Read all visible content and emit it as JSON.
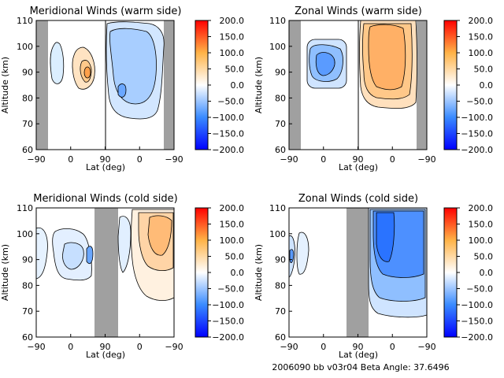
{
  "footer": "2006090 bb v03r04   Beta Angle: 37.6496",
  "colorbar": {
    "ticks": [
      "200.0",
      "150.0",
      "100.0",
      "50.0",
      "0.0",
      "−50.0",
      "−100.0",
      "−150.0",
      "−200.0"
    ],
    "range": [
      -200,
      200
    ],
    "colors": [
      "#0000ff",
      "#3a8bff",
      "#ffffff",
      "#ffb347",
      "#ff0000"
    ]
  },
  "chart_data": [
    {
      "type": "heatmap",
      "title": "Meridional Winds (warm side)",
      "xlabel": "Lat (deg)",
      "ylabel": "Altitude (km)",
      "x_ticks": [
        "−90",
        "0",
        "90",
        "0",
        "−90"
      ],
      "y_ticks": [
        60,
        70,
        80,
        90,
        100,
        110
      ],
      "ylim": [
        60,
        110
      ],
      "x_range": "-90 → 90 → -90 (orbit-ordered latitude)",
      "no_data_bands": [
        [
          -90,
          -75
        ],
        [
          -90,
          -75
        ]
      ],
      "levels": [
        -200,
        -150,
        -100,
        -50,
        0,
        50,
        100,
        150,
        200
      ],
      "features": [
        {
          "sign": "negative",
          "lat": -45,
          "alt_min": 88,
          "alt_max": 102,
          "peak": -20
        },
        {
          "sign": "positive",
          "lat": 20,
          "alt_min": 82,
          "alt_max": 96,
          "peak": 60
        },
        {
          "sign": "negative",
          "lat": 5,
          "alt_min": 75,
          "alt_max": 110,
          "peak": -60
        }
      ]
    },
    {
      "type": "heatmap",
      "title": "Zonal Winds (warm side)",
      "xlabel": "Lat (deg)",
      "ylabel": "Altitude (km)",
      "x_ticks": [
        "−90",
        "0",
        "90",
        "0",
        "−90"
      ],
      "y_ticks": [
        60,
        70,
        80,
        90,
        100,
        110
      ],
      "ylim": [
        60,
        110
      ],
      "levels": [
        -200,
        -150,
        -100,
        -50,
        0,
        50,
        100,
        150,
        200
      ],
      "features": [
        {
          "sign": "negative",
          "lat": -10,
          "alt_min": 83,
          "alt_max": 104,
          "peak": -80
        },
        {
          "sign": "positive",
          "lat": 0,
          "alt_min": 78,
          "alt_max": 110,
          "peak": 80
        }
      ]
    },
    {
      "type": "heatmap",
      "title": "Meridional Winds (cold side)",
      "xlabel": "Lat (deg)",
      "ylabel": "Altitude (km)",
      "x_ticks": [
        "−90",
        "0",
        "90",
        "0",
        "−90"
      ],
      "y_ticks": [
        60,
        70,
        80,
        90,
        100,
        110
      ],
      "ylim": [
        60,
        110
      ],
      "levels": [
        -200,
        -150,
        -100,
        -50,
        0,
        50,
        100,
        150,
        200
      ],
      "features": [
        {
          "sign": "negative",
          "lat": -20,
          "alt_min": 83,
          "alt_max": 104,
          "peak": -40
        },
        {
          "sign": "positive",
          "lat": 30,
          "alt_min": 78,
          "alt_max": 110,
          "peak": 60
        }
      ]
    },
    {
      "type": "heatmap",
      "title": "Zonal Winds (cold side)",
      "xlabel": "Lat (deg)",
      "ylabel": "Altitude (km)",
      "x_ticks": [
        "−90",
        "0",
        "90",
        "0",
        "−90"
      ],
      "y_ticks": [
        60,
        70,
        80,
        90,
        100,
        110
      ],
      "ylim": [
        60,
        110
      ],
      "levels": [
        -200,
        -150,
        -100,
        -50,
        0,
        50,
        100,
        150,
        200
      ],
      "features": [
        {
          "sign": "negative",
          "lat": -80,
          "alt_min": 85,
          "alt_max": 100,
          "peak": -20
        },
        {
          "sign": "negative",
          "lat": 30,
          "alt_min": 76,
          "alt_max": 110,
          "peak": -100
        }
      ]
    }
  ]
}
